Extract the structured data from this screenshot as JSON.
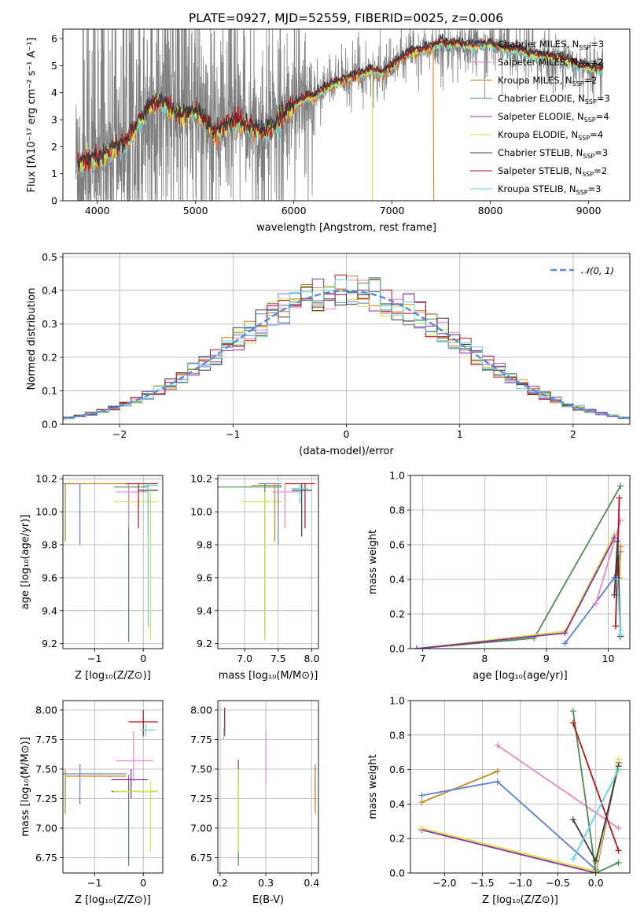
{
  "figure": {
    "title": "PLATE=0927, MJD=52559, FIBERID=0025, z=0.006"
  },
  "legend_models": [
    {
      "label": "Chabrier MILES, N",
      "sub": "SSP",
      "tail": "=3",
      "color": "#5c7fd6"
    },
    {
      "label": "Salpeter MILES, N",
      "sub": "SSP",
      "tail": "=2",
      "color": "#e887c8"
    },
    {
      "label": "Kroupa MILES, N",
      "sub": "SSP",
      "tail": "=2",
      "color": "#c8821e"
    },
    {
      "label": "Chabrier ELODIE, N",
      "sub": "SSP",
      "tail": "=3",
      "color": "#4e8a55"
    },
    {
      "label": "Salpeter ELODIE, N",
      "sub": "SSP",
      "tail": "=4",
      "color": "#8e2e9c"
    },
    {
      "label": "Kroupa ELODIE, N",
      "sub": "SSP",
      "tail": "=4",
      "color": "#d8e04a"
    },
    {
      "label": "Chabrier STELIB, N",
      "sub": "SSP",
      "tail": "=3",
      "color": "#3a3a3a"
    },
    {
      "label": "Salpeter STELIB, N",
      "sub": "SSP",
      "tail": "=2",
      "color": "#b5121b"
    },
    {
      "label": "Kroupa STELIB, N",
      "sub": "SSP",
      "tail": "=3",
      "color": "#5fd3e0"
    }
  ],
  "colors": {
    "data": "#808080",
    "orange": "#e87722",
    "gauss": "#5b8ad8",
    "grid": "#b0b0b0"
  },
  "chart_data": [
    {
      "id": "spectrum",
      "type": "line",
      "xlabel": "wavelength [Angstrom, rest frame]",
      "ylabel": "Flux [fλ10⁻¹⁷ erg cm⁻² s⁻¹ A⁻¹]",
      "xlim": [
        3650,
        9420
      ],
      "ylim": [
        0,
        6.35
      ],
      "xticks": [
        4000,
        5000,
        6000,
        7000,
        8000,
        9000
      ],
      "yticks": [
        0,
        1,
        2,
        3,
        4,
        5,
        6
      ],
      "model_continuum": {
        "x": [
          3800,
          3900,
          4000,
          4100,
          4200,
          4300,
          4400,
          4500,
          4600,
          4700,
          4800,
          4900,
          5000,
          5100,
          5200,
          5300,
          5400,
          5500,
          5600,
          5700,
          5800,
          5900,
          6000,
          6100,
          6200,
          6300,
          6400,
          6500,
          6600,
          6700,
          6800,
          6900,
          7000,
          7100,
          7200,
          7300,
          7400,
          7500,
          7600,
          7700,
          7800,
          7900,
          8000,
          8100,
          8200,
          8300,
          8400,
          8500,
          8600,
          8700,
          8800,
          8900,
          9000,
          9100
        ],
        "y": [
          1.3,
          1.5,
          1.5,
          1.75,
          1.95,
          2.2,
          2.75,
          3.3,
          3.6,
          3.6,
          3.2,
          3.15,
          3.3,
          2.9,
          2.45,
          2.75,
          2.95,
          2.85,
          2.65,
          2.55,
          2.75,
          3.2,
          3.5,
          3.8,
          3.85,
          4.1,
          4.3,
          4.45,
          4.55,
          4.7,
          4.8,
          4.7,
          4.95,
          5.3,
          5.5,
          5.55,
          5.65,
          5.85,
          5.75,
          5.8,
          5.7,
          5.75,
          5.8,
          5.65,
          5.55,
          5.6,
          5.4,
          5.35,
          5.3,
          5.25,
          5.1,
          5.0,
          4.95,
          4.85
        ]
      }
    },
    {
      "id": "residual-hist",
      "type": "line",
      "xlabel": "(data-model)/error",
      "ylabel": "Normed distribution",
      "xlim": [
        -2.5,
        2.5
      ],
      "ylim": [
        0,
        0.51
      ],
      "xticks": [
        -2,
        -1,
        0,
        1,
        2
      ],
      "yticks": [
        0.0,
        0.1,
        0.2,
        0.3,
        0.4,
        0.5
      ],
      "legend": "𝒩(0, 1)",
      "bin_width": 0.1
    },
    {
      "id": "age-vs-z",
      "type": "scatter",
      "xlabel": "Z [log₁₀(Z/Z⊙)]",
      "ylabel": "age  [log₁₀(age/yr)]",
      "xlim": [
        -1.65,
        0.4
      ],
      "ylim": [
        9.17,
        10.22
      ],
      "xticks": [
        -1,
        0
      ],
      "yticks": [
        9.2,
        9.4,
        9.6,
        9.8,
        10.0,
        10.2
      ],
      "points": [
        {
          "c": 0,
          "x": -1.3,
          "y": 10.17,
          "xe": [
            -1.65,
            -1.3
          ],
          "ye": [
            9.8,
            10.17
          ]
        },
        {
          "c": 2,
          "x": -1.6,
          "y": 10.17,
          "xe": [
            -1.6,
            -0.3
          ],
          "ye": [
            9.82,
            10.17
          ]
        },
        {
          "c": 3,
          "x": -0.3,
          "y": 10.15,
          "xe": [
            -0.6,
            0.1
          ],
          "ye": [
            9.21,
            10.17
          ]
        },
        {
          "c": 1,
          "x": -0.3,
          "y": 10.12,
          "xe": [
            -0.55,
            0.1
          ],
          "ye": [
            9.9,
            10.17
          ]
        },
        {
          "c": 5,
          "x": 0.15,
          "y": 10.06,
          "xe": [
            -0.6,
            0.3
          ],
          "ye": [
            9.22,
            10.12
          ]
        },
        {
          "c": 7,
          "x": -0.1,
          "y": 10.17,
          "xe": [
            -0.35,
            0.3
          ],
          "ye": [
            9.9,
            10.17
          ]
        },
        {
          "c": 6,
          "x": 0.1,
          "y": 10.13,
          "xe": [
            -0.1,
            0.3
          ],
          "ye": [
            9.85,
            10.17
          ]
        },
        {
          "c": 8,
          "x": 0.1,
          "y": 10.16,
          "xe": [
            0.0,
            0.3
          ],
          "ye": [
            9.3,
            10.17
          ]
        }
      ]
    },
    {
      "id": "age-vs-mass",
      "type": "scatter",
      "xlabel": "mass [log₁₀(M/M⊙)]",
      "ylabel": "",
      "xlim": [
        6.6,
        8.1
      ],
      "ylim": [
        9.17,
        10.22
      ],
      "xticks": [
        7.0,
        7.5,
        8.0
      ],
      "yticks": [
        9.2,
        9.4,
        9.6,
        9.8,
        10.0,
        10.2
      ],
      "points": [
        {
          "c": 3,
          "x": 7.3,
          "y": 10.15,
          "xe": [
            6.6,
            7.55
          ],
          "ye": [
            9.22,
            10.17
          ]
        },
        {
          "c": 5,
          "x": 7.3,
          "y": 10.06,
          "xe": [
            6.95,
            7.55
          ],
          "ye": [
            9.22,
            10.12
          ]
        },
        {
          "c": 0,
          "x": 7.5,
          "y": 10.17,
          "xe": [
            7.2,
            7.55
          ],
          "ye": [
            9.8,
            10.17
          ]
        },
        {
          "c": 2,
          "x": 7.45,
          "y": 10.16,
          "xe": [
            7.1,
            7.55
          ],
          "ye": [
            9.82,
            10.17
          ]
        },
        {
          "c": 1,
          "x": 7.6,
          "y": 10.12,
          "xe": [
            7.4,
            7.85
          ],
          "ye": [
            9.9,
            10.17
          ]
        },
        {
          "c": 7,
          "x": 7.9,
          "y": 10.17,
          "xe": [
            7.6,
            8.05
          ],
          "ye": [
            9.9,
            10.17
          ]
        },
        {
          "c": 6,
          "x": 7.85,
          "y": 10.13,
          "xe": [
            7.7,
            8.0
          ],
          "ye": [
            9.85,
            10.17
          ]
        },
        {
          "c": 8,
          "x": 7.82,
          "y": 10.14,
          "xe": [
            7.7,
            7.95
          ],
          "ye": [
            10.05,
            10.17
          ]
        }
      ]
    },
    {
      "id": "weight-vs-age",
      "type": "line",
      "xlabel": "age  [log₁₀(age/yr)]",
      "ylabel": "mass weight",
      "xlim": [
        6.8,
        10.35
      ],
      "ylim": [
        0,
        1.0
      ],
      "xticks": [
        7,
        8,
        9,
        10
      ],
      "yticks": [
        0.0,
        0.2,
        0.4,
        0.6,
        0.8,
        1.0
      ],
      "series": [
        {
          "c": 3,
          "x": [
            6.9,
            8.8,
            10.2
          ],
          "y": [
            0.0,
            0.06,
            0.94
          ]
        },
        {
          "c": 5,
          "x": [
            6.9,
            9.3,
            10.1
          ],
          "y": [
            0.0,
            0.1,
            0.66
          ]
        },
        {
          "c": 4,
          "x": [
            6.9,
            9.3,
            10.1
          ],
          "y": [
            0.0,
            0.09,
            0.64
          ]
        },
        {
          "c": 0,
          "x": [
            9.3,
            10.1,
            10.2
          ],
          "y": [
            0.03,
            0.41,
            0.56
          ]
        },
        {
          "c": 2,
          "x": [
            10.18,
            10.2
          ],
          "y": [
            0.41,
            0.59
          ]
        },
        {
          "c": 1,
          "x": [
            9.8,
            10.2
          ],
          "y": [
            0.26,
            0.74
          ]
        },
        {
          "c": 7,
          "x": [
            10.12,
            10.18
          ],
          "y": [
            0.13,
            0.87
          ]
        },
        {
          "c": 6,
          "x": [
            10.1,
            10.15,
            10.2
          ],
          "y": [
            0.31,
            0.62,
            0.07
          ]
        },
        {
          "c": 8,
          "x": [
            10.15,
            10.2
          ],
          "y": [
            0.4,
            0.08
          ]
        }
      ]
    },
    {
      "id": "mass-vs-z",
      "type": "scatter",
      "xlabel": "Z [log₁₀(Z/Z⊙)]",
      "ylabel": "mass [log₁₀(M/M⊙)]",
      "xlim": [
        -1.65,
        0.4
      ],
      "ylim": [
        6.62,
        8.08
      ],
      "xticks": [
        -1,
        0
      ],
      "yticks": [
        6.75,
        7.0,
        7.25,
        7.5,
        7.75,
        8.0
      ],
      "points": [
        {
          "c": 0,
          "x": -1.3,
          "y": 7.46,
          "xe": [
            -1.65,
            -0.35
          ],
          "ye": [
            7.2,
            7.54
          ]
        },
        {
          "c": 2,
          "x": -1.6,
          "y": 7.44,
          "xe": [
            -1.6,
            -0.35
          ],
          "ye": [
            7.12,
            7.5
          ]
        },
        {
          "c": 3,
          "x": -0.3,
          "y": 7.31,
          "xe": [
            -0.65,
            0.3
          ],
          "ye": [
            6.68,
            7.45
          ]
        },
        {
          "c": 4,
          "x": -0.25,
          "y": 7.41,
          "xe": [
            -0.65,
            0.1
          ],
          "ye": [
            7.25,
            7.5
          ]
        },
        {
          "c": 5,
          "x": 0.15,
          "y": 7.31,
          "xe": [
            -0.6,
            0.3
          ],
          "ye": [
            6.8,
            7.4
          ]
        },
        {
          "c": 1,
          "x": -0.2,
          "y": 7.57,
          "xe": [
            -0.55,
            0.2
          ],
          "ye": [
            7.4,
            7.82
          ]
        },
        {
          "c": 7,
          "x": 0.0,
          "y": 7.9,
          "xe": [
            -0.3,
            0.3
          ],
          "ye": [
            7.78,
            8.0
          ]
        },
        {
          "c": 8,
          "x": 0.05,
          "y": 7.83,
          "xe": [
            -0.05,
            0.25
          ],
          "ye": [
            7.78,
            7.88
          ]
        }
      ]
    },
    {
      "id": "mass-vs-ebv",
      "type": "scatter",
      "xlabel": "E(B-V)",
      "ylabel": "",
      "xlim": [
        0.195,
        0.415
      ],
      "ylim": [
        6.62,
        8.08
      ],
      "xticks": [
        0.2,
        0.3,
        0.4
      ],
      "yticks": [
        6.75,
        7.0,
        7.25,
        7.5,
        7.75,
        8.0
      ],
      "points": [
        {
          "c": 7,
          "x": 0.21,
          "y": 7.9,
          "ye": [
            7.78,
            8.02
          ]
        },
        {
          "c": 8,
          "x": 0.208,
          "y": 7.8,
          "ye": [
            7.75,
            7.85
          ]
        },
        {
          "c": 4,
          "x": 0.24,
          "y": 7.5,
          "ye": [
            7.4,
            7.58
          ]
        },
        {
          "c": 3,
          "x": 0.24,
          "y": 7.3,
          "ye": [
            6.68,
            7.5
          ]
        },
        {
          "c": 5,
          "x": 0.24,
          "y": 7.3,
          "ye": [
            6.8,
            7.5
          ]
        },
        {
          "c": 1,
          "x": 0.3,
          "y": 7.6,
          "ye": [
            7.38,
            7.82
          ]
        },
        {
          "c": 0,
          "x": 0.408,
          "y": 7.45,
          "ye": [
            7.2,
            7.54
          ]
        },
        {
          "c": 2,
          "x": 0.408,
          "y": 7.3,
          "ye": [
            7.12,
            7.5
          ]
        }
      ]
    },
    {
      "id": "weight-vs-z",
      "type": "line",
      "xlabel": "Z [log₁₀(Z/Z⊙)]",
      "ylabel": "mass weight",
      "xlim": [
        -2.45,
        0.45
      ],
      "ylim": [
        0,
        1.0
      ],
      "xticks": [
        -2.0,
        -1.5,
        -1.0,
        -0.5,
        0.0
      ],
      "yticks": [
        0.0,
        0.2,
        0.4,
        0.6,
        0.8,
        1.0
      ],
      "series": [
        {
          "c": 2,
          "x": [
            -2.3,
            -1.3
          ],
          "y": [
            0.41,
            0.59
          ]
        },
        {
          "c": 0,
          "x": [
            -2.3,
            -1.3,
            0.0
          ],
          "y": [
            0.45,
            0.53,
            0.02
          ]
        },
        {
          "c": 4,
          "x": [
            -2.3,
            0.0,
            0.3
          ],
          "y": [
            0.25,
            0.0,
            0.64
          ]
        },
        {
          "c": 5,
          "x": [
            -2.3,
            0.0,
            0.3
          ],
          "y": [
            0.26,
            0.01,
            0.66
          ]
        },
        {
          "c": 1,
          "x": [
            -1.3,
            0.3
          ],
          "y": [
            0.74,
            0.26
          ]
        },
        {
          "c": 3,
          "x": [
            -0.3,
            0.0,
            0.3
          ],
          "y": [
            0.94,
            0.0,
            0.06
          ]
        },
        {
          "c": 7,
          "x": [
            -0.3,
            0.3
          ],
          "y": [
            0.87,
            0.13
          ]
        },
        {
          "c": 6,
          "x": [
            -0.3,
            0.0,
            0.3
          ],
          "y": [
            0.31,
            0.07,
            0.62
          ]
        },
        {
          "c": 8,
          "x": [
            -0.3,
            0.3
          ],
          "y": [
            0.08,
            0.6
          ]
        }
      ]
    }
  ]
}
